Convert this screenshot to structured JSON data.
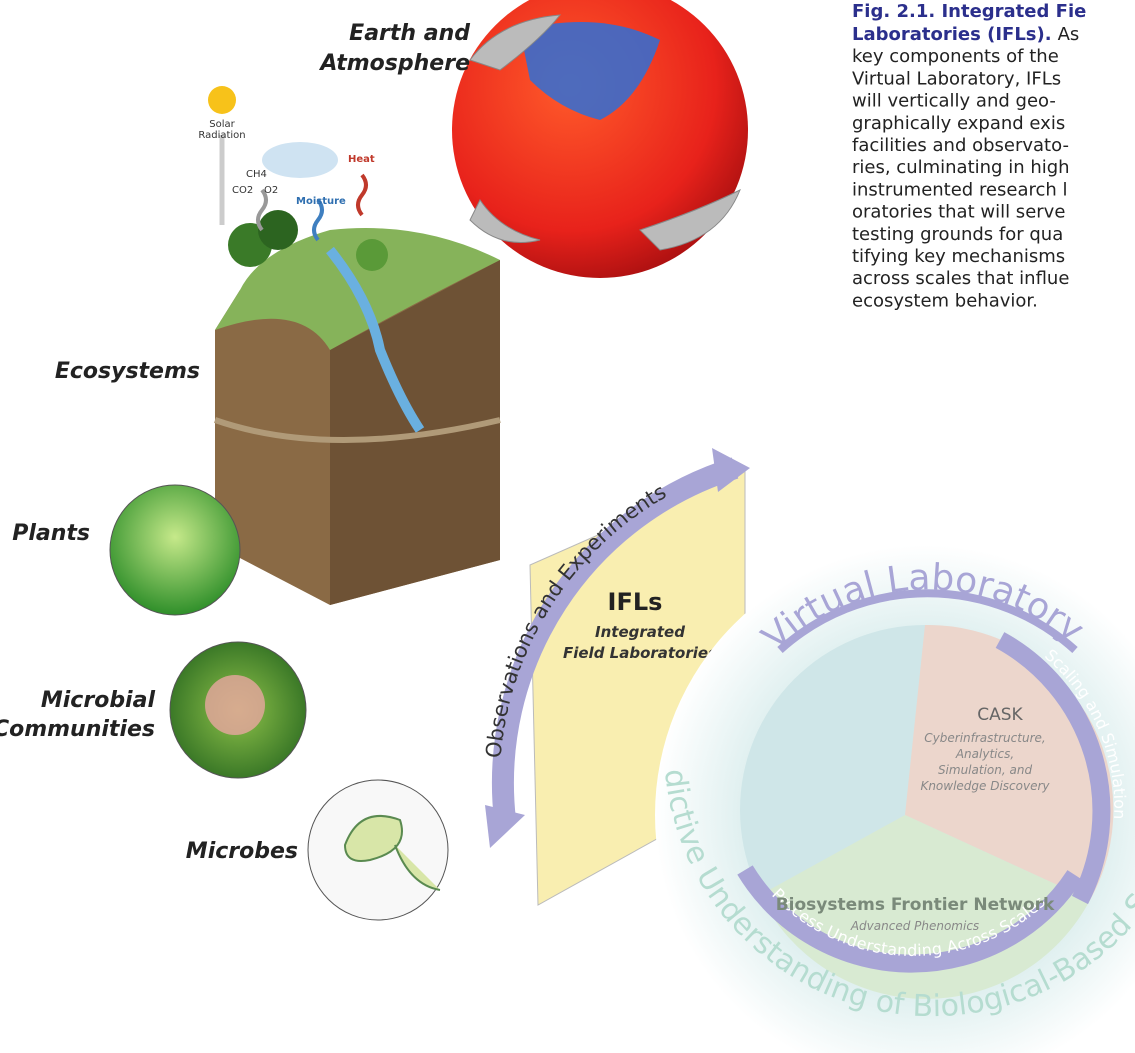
{
  "caption": {
    "bold_1": "Fig. 2.1. Integrated Fie",
    "bold_2": "Laboratories (IFLs).",
    "lines": [
      "As",
      "key components of the",
      "Virtual Laboratory, IFLs",
      "will vertically and geo-",
      "graphically expand exis",
      "facilities and observato-",
      "ries, culminating in high",
      "instrumented research l",
      "oratories that will serve",
      "testing grounds for qua",
      "tifying key mechanisms",
      "across scales that influe",
      "ecosystem behavior."
    ]
  },
  "scales": {
    "earth_1": "Earth and",
    "earth_2": "Atmosphere",
    "ecosystems": "Ecosystems",
    "plants": "Plants",
    "microbial_1": "Microbial",
    "microbial_2": "Communities",
    "microbes": "Microbes"
  },
  "fluxes": {
    "solar_1": "Solar",
    "solar_2": "Radiation",
    "ch4": "CH4",
    "co2": "CO2",
    "o2": "O2",
    "moisture": "Moisture",
    "heat": "Heat"
  },
  "ifl": {
    "arrow": "Observations and Experiments",
    "title": "IFLs",
    "sub_1": "Integrated",
    "sub_2": "Field Laboratories"
  },
  "virtual_lab": {
    "title": "Virtual Laboratory",
    "scaling": "Scaling and Simulation",
    "cask": "CASK",
    "cask_lines": [
      "Cyberinfrastructure,",
      "Analytics,",
      "Simulation, and",
      "Knowledge Discovery"
    ],
    "bfn": "Biosystems Frontier Network",
    "bfn_sub": "Advanced Phenomics",
    "process": "Process Understanding Across Scales",
    "outer": "Predictive Understanding of Biological-Based Systems"
  }
}
